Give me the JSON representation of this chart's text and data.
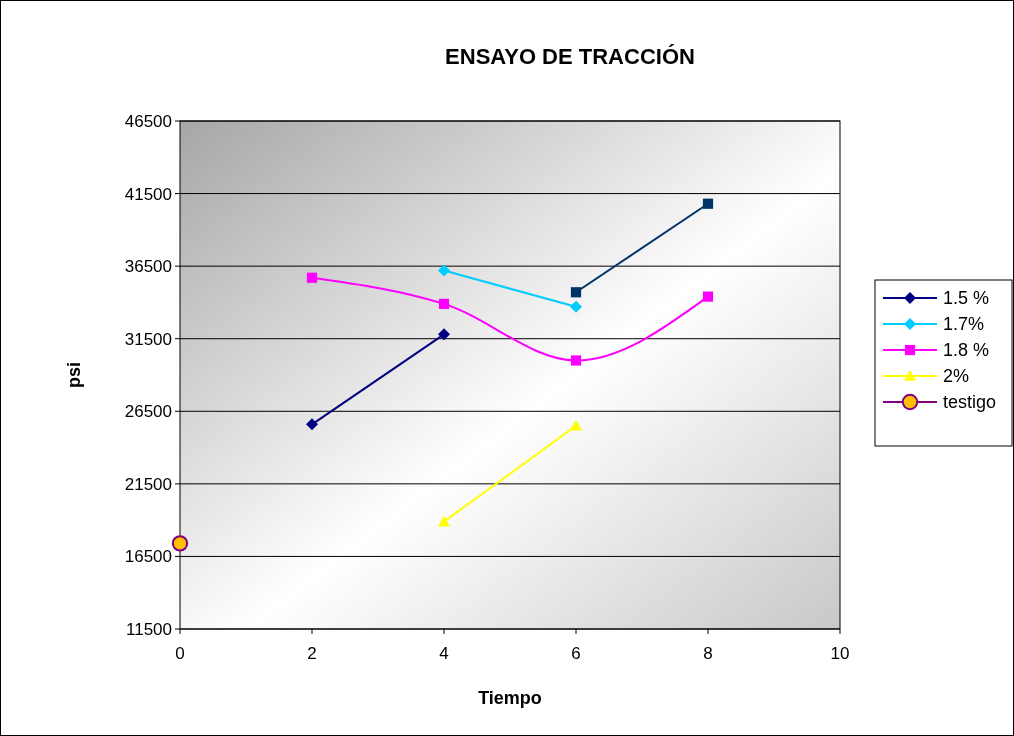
{
  "chart_data": {
    "type": "line",
    "title": "ENSAYO DE TRACCIÓN",
    "xlabel": "Tiempo",
    "ylabel": "psi",
    "xlim": [
      0,
      10
    ],
    "xticks": [
      0,
      2,
      4,
      6,
      8,
      10
    ],
    "ylim": [
      11500,
      46500
    ],
    "yticks": [
      11500,
      16500,
      21500,
      26500,
      31500,
      36500,
      41500,
      46500
    ],
    "grid": "y",
    "legend": "right",
    "series": [
      {
        "name": "1.5 %",
        "color": "#000080",
        "marker": "diamond",
        "x": [
          2,
          4
        ],
        "values": [
          25600,
          31800
        ]
      },
      {
        "name": "1.7%",
        "color": "#00ccff",
        "marker": "diamond",
        "x": [
          4,
          6
        ],
        "values": [
          36200,
          33700
        ]
      },
      {
        "name": "1.8 %",
        "color": "#ff00ff",
        "marker": "square",
        "x": [
          2,
          4,
          6,
          8
        ],
        "values": [
          35700,
          33900,
          30000,
          34400
        ]
      },
      {
        "name": "2%",
        "color": "#ffff00",
        "marker": "triangle",
        "x": [
          4,
          6
        ],
        "values": [
          18900,
          25500
        ]
      },
      {
        "name": "testigo",
        "color": "#ffc000",
        "marker": "circle",
        "x": [
          0
        ],
        "values": [
          17400
        ]
      },
      {
        "color": "#003366",
        "marker": "square",
        "x": [
          6,
          8
        ],
        "values": [
          34700,
          40800
        ]
      }
    ]
  }
}
